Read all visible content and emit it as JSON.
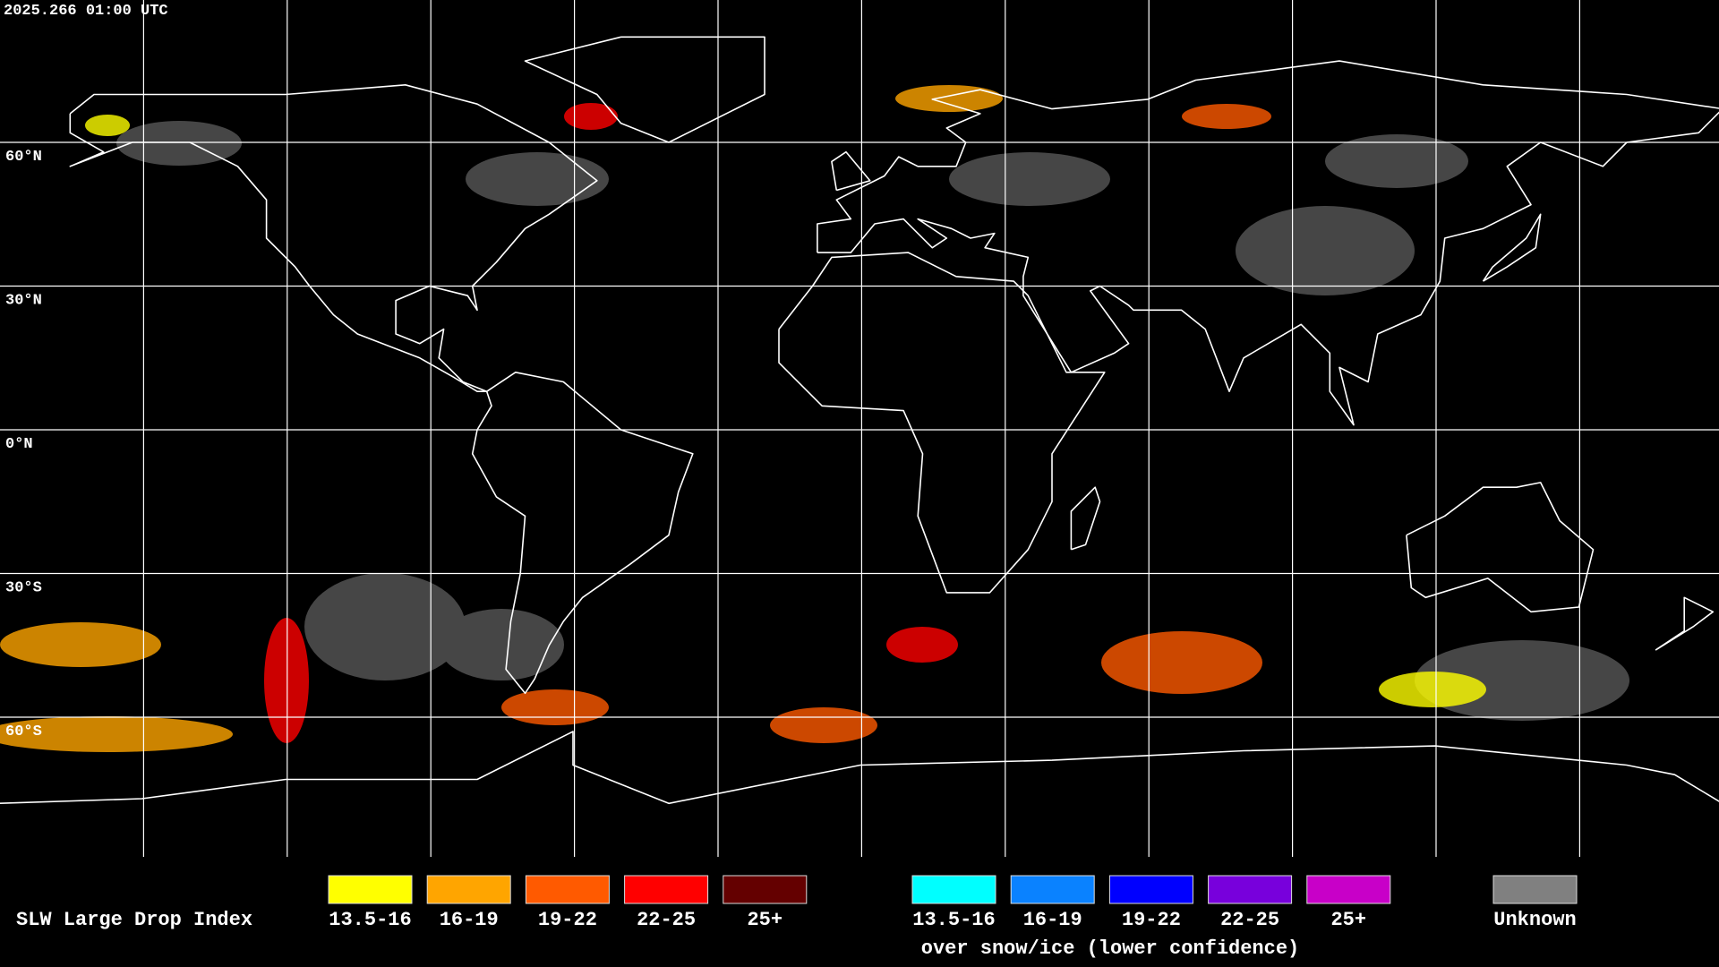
{
  "header": {
    "timestamp": "2025.266 01:00 UTC"
  },
  "map": {
    "lat_labels": [
      "60°N",
      "30°N",
      "0°N",
      "30°S",
      "60°S"
    ]
  },
  "legend": {
    "title": "SLW Large Drop Index",
    "groups": [
      {
        "items": [
          {
            "label": "13.5-16",
            "color": "#ffff00"
          },
          {
            "label": "16-19",
            "color": "#ffa500"
          },
          {
            "label": "19-22",
            "color": "#ff5a00"
          },
          {
            "label": "22-25",
            "color": "#ff0000"
          },
          {
            "label": "25+",
            "color": "#640000"
          }
        ]
      },
      {
        "items": [
          {
            "label": "13.5-16",
            "color": "#00ffff"
          },
          {
            "label": "16-19",
            "color": "#0a82ff"
          },
          {
            "label": "19-22",
            "color": "#0000ff"
          },
          {
            "label": "22-25",
            "color": "#7800dc"
          },
          {
            "label": "25+",
            "color": "#c800c8"
          }
        ],
        "caption": "over snow/ice (lower confidence)"
      }
    ],
    "unknown": {
      "label": "Unknown",
      "color": "#808080"
    }
  }
}
